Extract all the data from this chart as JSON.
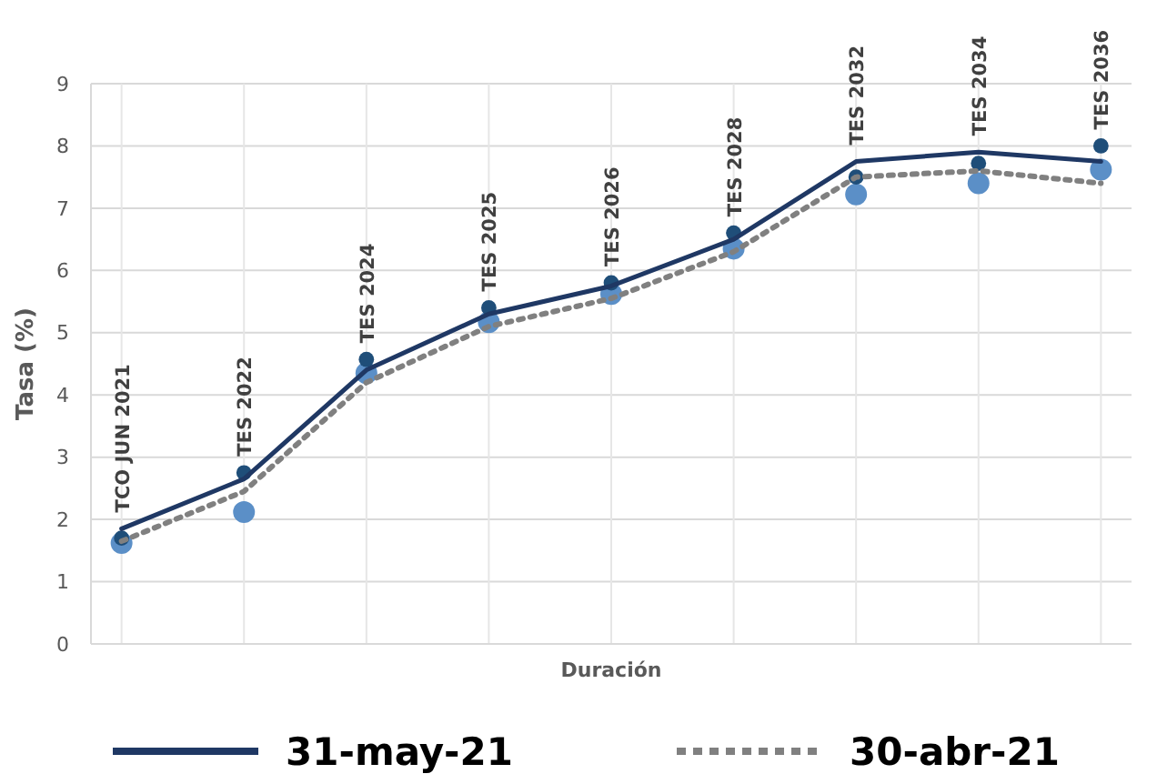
{
  "chart_data": {
    "type": "scatter",
    "ylabel": "Tasa (%)",
    "xlabel": "Duración",
    "categories": [
      null,
      null,
      null,
      null,
      null,
      null,
      null,
      null,
      null
    ],
    "tick_labels": "y",
    "ylim": [
      0,
      9
    ],
    "yticks": [
      0,
      1,
      2,
      3,
      4,
      5,
      6,
      7,
      8,
      9
    ],
    "grid": true,
    "legend": "bottom",
    "marker": "circle",
    "series": [
      {
        "color": "#5b8fc7",
        "values": [
          1.62,
          2.12,
          4.35,
          5.17,
          5.62,
          6.35,
          7.22,
          7.4,
          7.62
        ]
      },
      {
        "color": "#1f4e79",
        "values": [
          1.7,
          2.75,
          4.57,
          5.4,
          5.8,
          6.6,
          7.5,
          7.72,
          8.0
        ]
      },
      {
        "type": "line",
        "name": "31-may-21",
        "color": "#1f3864",
        "line_style": "solid",
        "marker": "none",
        "values": [
          1.85,
          2.65,
          4.4,
          5.3,
          5.75,
          6.5,
          7.75,
          7.9,
          7.75
        ]
      },
      {
        "type": "line",
        "name": "30-abr-21",
        "color": "#808080",
        "line_style": "dotted",
        "marker": "none",
        "values": [
          1.65,
          2.45,
          4.2,
          5.1,
          5.55,
          6.3,
          7.5,
          7.6,
          7.4
        ]
      }
    ],
    "annotations": [
      "TCO JUN 2021",
      "TES 2022",
      "TES 2024",
      "TES 2025",
      "TES 2026",
      "TES 2028",
      "TES 2032",
      "TES 2034",
      "TES 2036"
    ]
  }
}
